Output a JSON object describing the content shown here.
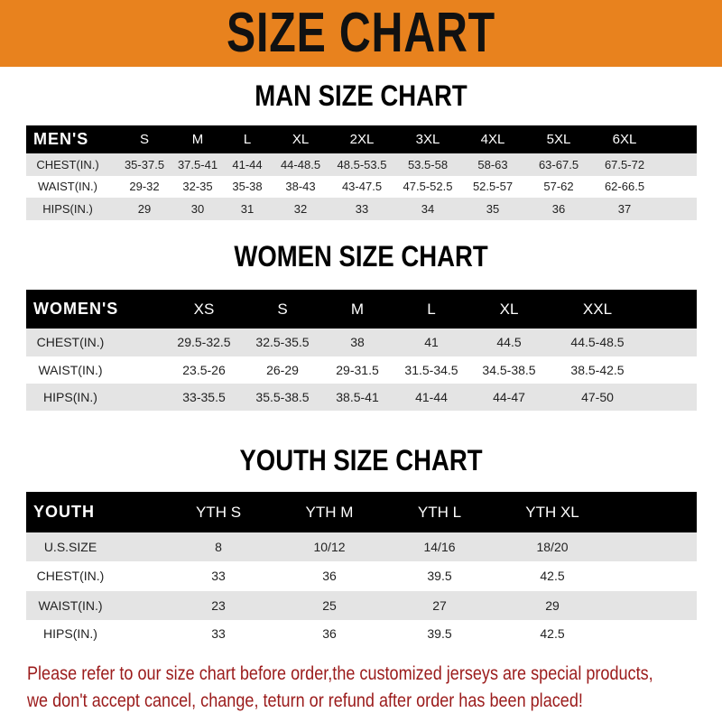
{
  "banner": {
    "title": "SIZE CHART",
    "color": "#e8821e"
  },
  "men": {
    "title": "MAN SIZE CHART",
    "header": [
      "MEN'S",
      "S",
      "M",
      "L",
      "XL",
      "2XL",
      "3XL",
      "4XL",
      "5XL",
      "6XL"
    ],
    "rows": [
      [
        "CHEST(IN.)",
        "35-37.5",
        "37.5-41",
        "41-44",
        "44-48.5",
        "48.5-53.5",
        "53.5-58",
        "58-63",
        "63-67.5",
        "67.5-72"
      ],
      [
        "WAIST(IN.)",
        "29-32",
        "32-35",
        "35-38",
        "38-43",
        "43-47.5",
        "47.5-52.5",
        "52.5-57",
        "57-62",
        "62-66.5"
      ],
      [
        "HIPS(IN.)",
        "29",
        "30",
        "31",
        "32",
        "33",
        "34",
        "35",
        "36",
        "37"
      ]
    ]
  },
  "women": {
    "title": "WOMEN SIZE CHART",
    "header": [
      "WOMEN'S",
      "XS",
      "S",
      "M",
      "L",
      "XL",
      "XXL"
    ],
    "rows": [
      [
        "CHEST(IN.)",
        "29.5-32.5",
        "32.5-35.5",
        "38",
        "41",
        "44.5",
        "44.5-48.5"
      ],
      [
        "WAIST(IN.)",
        "23.5-26",
        "26-29",
        "29-31.5",
        "31.5-34.5",
        "34.5-38.5",
        "38.5-42.5"
      ],
      [
        "HIPS(IN.)",
        "33-35.5",
        "35.5-38.5",
        "38.5-41",
        "41-44",
        "44-47",
        "47-50"
      ]
    ]
  },
  "youth": {
    "title": "YOUTH SIZE CHART",
    "header": [
      "YOUTH",
      "YTH S",
      "YTH M",
      "YTH L",
      "YTH XL"
    ],
    "rows": [
      [
        "U.S.SIZE",
        "8",
        "10/12",
        "14/16",
        "18/20"
      ],
      [
        "CHEST(IN.)",
        "33",
        "36",
        "39.5",
        "42.5"
      ],
      [
        "WAIST(IN.)",
        "23",
        "25",
        "27",
        "29"
      ],
      [
        "HIPS(IN.)",
        "33",
        "36",
        "39.5",
        "42.5"
      ]
    ]
  },
  "footer": {
    "line1": "Please refer to our size chart before order,the customized jerseys are special products,",
    "line2": "we don't accept cancel, change, teturn or refund after order has been placed!",
    "color": "#9b1b1b"
  }
}
